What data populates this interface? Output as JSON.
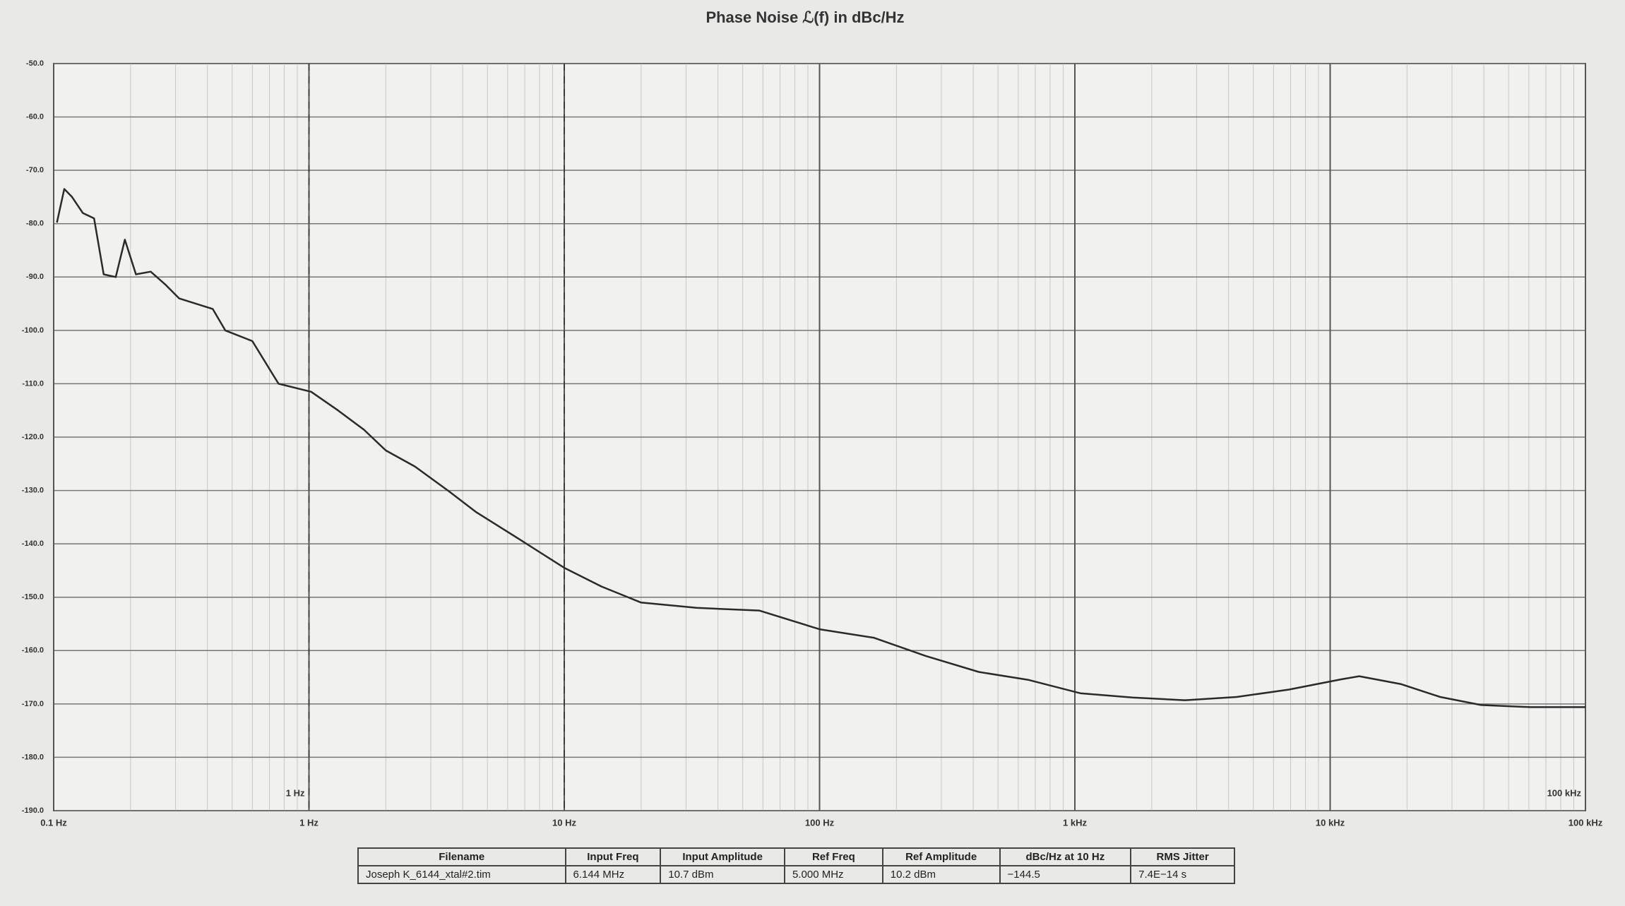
{
  "chart_data": {
    "type": "line",
    "title": "Phase Noise ℒ(f) in dBc/Hz",
    "log_x": true,
    "grid": true,
    "color": "#2a2a2a",
    "xlim": [
      0.1,
      100000
    ],
    "xticks": [
      {
        "value": 0.1,
        "label": "0.1 Hz"
      },
      {
        "value": 1,
        "label": "1 Hz"
      },
      {
        "value": 10,
        "label": "10 Hz"
      },
      {
        "value": 100,
        "label": "100 Hz"
      },
      {
        "value": 1000,
        "label": "1 kHz"
      },
      {
        "value": 10000,
        "label": "10 kHz"
      },
      {
        "value": 100000,
        "label": "100 kHz"
      }
    ],
    "ylim": [
      -190,
      -50
    ],
    "yticks": [
      {
        "value": -50,
        "label": "-50.0"
      },
      {
        "value": -60,
        "label": "-60.0"
      },
      {
        "value": -70,
        "label": "-70.0"
      },
      {
        "value": -80,
        "label": "-80.0"
      },
      {
        "value": -90,
        "label": "-90.0"
      },
      {
        "value": -100,
        "label": "-100.0"
      },
      {
        "value": -110,
        "label": "-110.0"
      },
      {
        "value": -120,
        "label": "-120.0"
      },
      {
        "value": -130,
        "label": "-130.0"
      },
      {
        "value": -140,
        "label": "-140.0"
      },
      {
        "value": -150,
        "label": "-150.0"
      },
      {
        "value": -160,
        "label": "-160.0"
      },
      {
        "value": -170,
        "label": "-170.0"
      },
      {
        "value": -180,
        "label": "-180.0"
      },
      {
        "value": -190,
        "label": "-190.0"
      }
    ],
    "dashed_lines_x": [
      1,
      10
    ],
    "annotations": [
      {
        "text": "1 Hz",
        "x": 1
      },
      {
        "text": "100 kHz",
        "x": 100000
      }
    ],
    "x": [
      0.103,
      0.11,
      0.118,
      0.13,
      0.144,
      0.157,
      0.175,
      0.19,
      0.21,
      0.24,
      0.275,
      0.31,
      0.42,
      0.47,
      0.6,
      0.76,
      1.02,
      1.3,
      1.64,
      2.0,
      2.6,
      3.5,
      4.5,
      6.6,
      10,
      14,
      20,
      33,
      58,
      100,
      163,
      260,
      420,
      660,
      1050,
      1680,
      2700,
      4300,
      6900,
      11000,
      13000,
      19000,
      27000,
      39000,
      61000,
      100000
    ],
    "values": [
      -79.8,
      -73.5,
      -75,
      -78,
      -79,
      -89.5,
      -90,
      -83,
      -89.5,
      -89,
      -91.5,
      -94,
      -96,
      -100,
      -102,
      -110,
      -111.5,
      -115,
      -118.6,
      -122.5,
      -125.5,
      -130,
      -134,
      -139,
      -144.5,
      -148,
      -151,
      -152,
      -152.5,
      -156,
      -157.6,
      -161,
      -164,
      -165.5,
      -168,
      -168.8,
      -169.3,
      -168.7,
      -167.3,
      -165.4,
      -164.8,
      -166.3,
      -168.7,
      -170.2,
      -170.6,
      -170.6
    ]
  },
  "table": {
    "columns": [
      "Filename",
      "Input Freq",
      "Input Amplitude",
      "Ref Freq",
      "Ref Amplitude",
      "dBc/Hz at 10 Hz",
      "RMS Jitter"
    ],
    "rows": [
      [
        "Joseph K_6144_xtal#2.tim",
        "6.144 MHz",
        "10.7 dBm",
        "5.000 MHz",
        "10.2 dBm",
        "−144.5",
        "7.4E−14 s"
      ]
    ]
  }
}
